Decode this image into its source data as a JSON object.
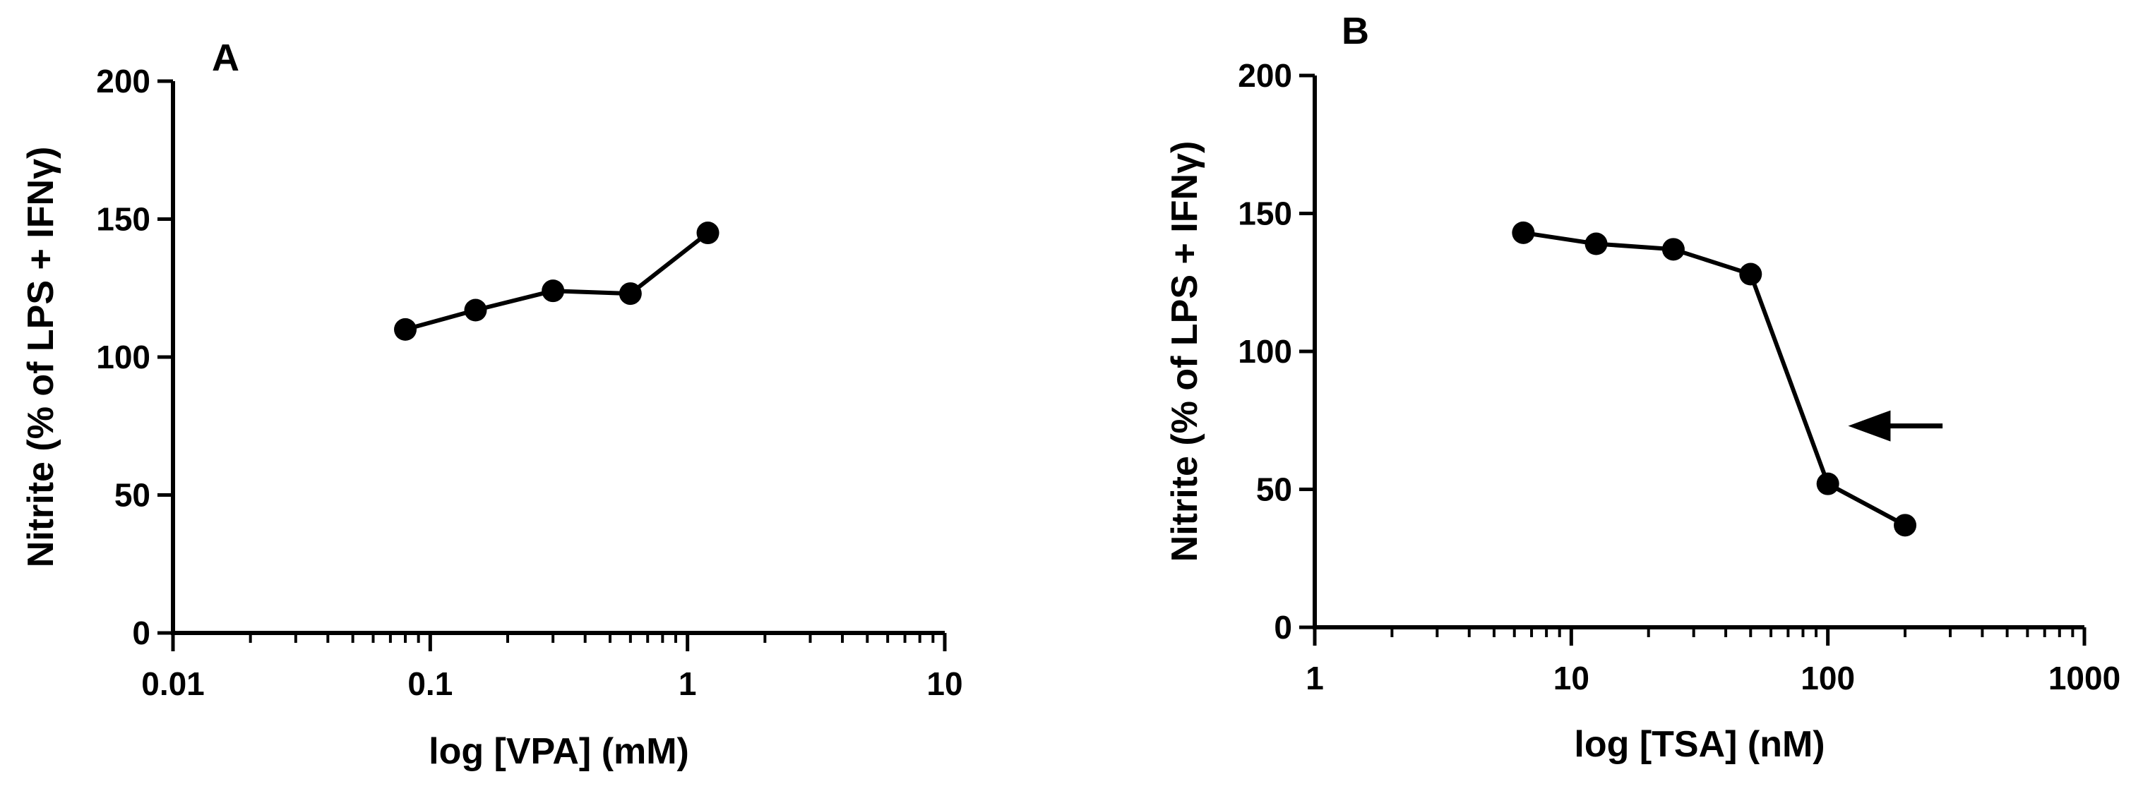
{
  "chart_data": [
    {
      "type": "line",
      "panel_label": "A",
      "title": "",
      "xlabel": "log [VPA] (mM)",
      "ylabel": "Nitrite (% of LPS + IFNγ)",
      "xscale": "log",
      "xlim": [
        0.01,
        10
      ],
      "ylim": [
        0,
        200
      ],
      "xticks": [
        0.01,
        0.1,
        1,
        10
      ],
      "xtick_labels": [
        "0.01",
        "0.1",
        "1",
        "10"
      ],
      "yticks": [
        0,
        50,
        100,
        150,
        200
      ],
      "ytick_labels": [
        "0",
        "50",
        "100",
        "150",
        "200"
      ],
      "grid": false,
      "series": [
        {
          "x": [
            0.08,
            0.15,
            0.3,
            0.6,
            1.2
          ],
          "y": [
            110,
            117,
            124,
            123,
            145
          ]
        }
      ]
    },
    {
      "type": "line",
      "panel_label": "B",
      "title": "",
      "xlabel": "log [TSA] (nM)",
      "ylabel": "Nitrite (% of LPS + IFNγ)",
      "xscale": "log",
      "xlim": [
        1,
        1000
      ],
      "ylim": [
        0,
        200
      ],
      "xticks": [
        1,
        10,
        100,
        1000
      ],
      "xtick_labels": [
        "1",
        "10",
        "100",
        "1000"
      ],
      "yticks": [
        0,
        50,
        100,
        150,
        200
      ],
      "ytick_labels": [
        "0",
        "50",
        "100",
        "150",
        "200"
      ],
      "grid": false,
      "series": [
        {
          "x": [
            6.5,
            12.5,
            25,
            50,
            100,
            200
          ],
          "y": [
            143,
            139,
            137,
            128,
            52,
            37
          ]
        }
      ],
      "annotations": [
        {
          "type": "arrow",
          "direction": "left",
          "from_x": 280,
          "to_x": 120,
          "y": 73
        }
      ]
    }
  ]
}
